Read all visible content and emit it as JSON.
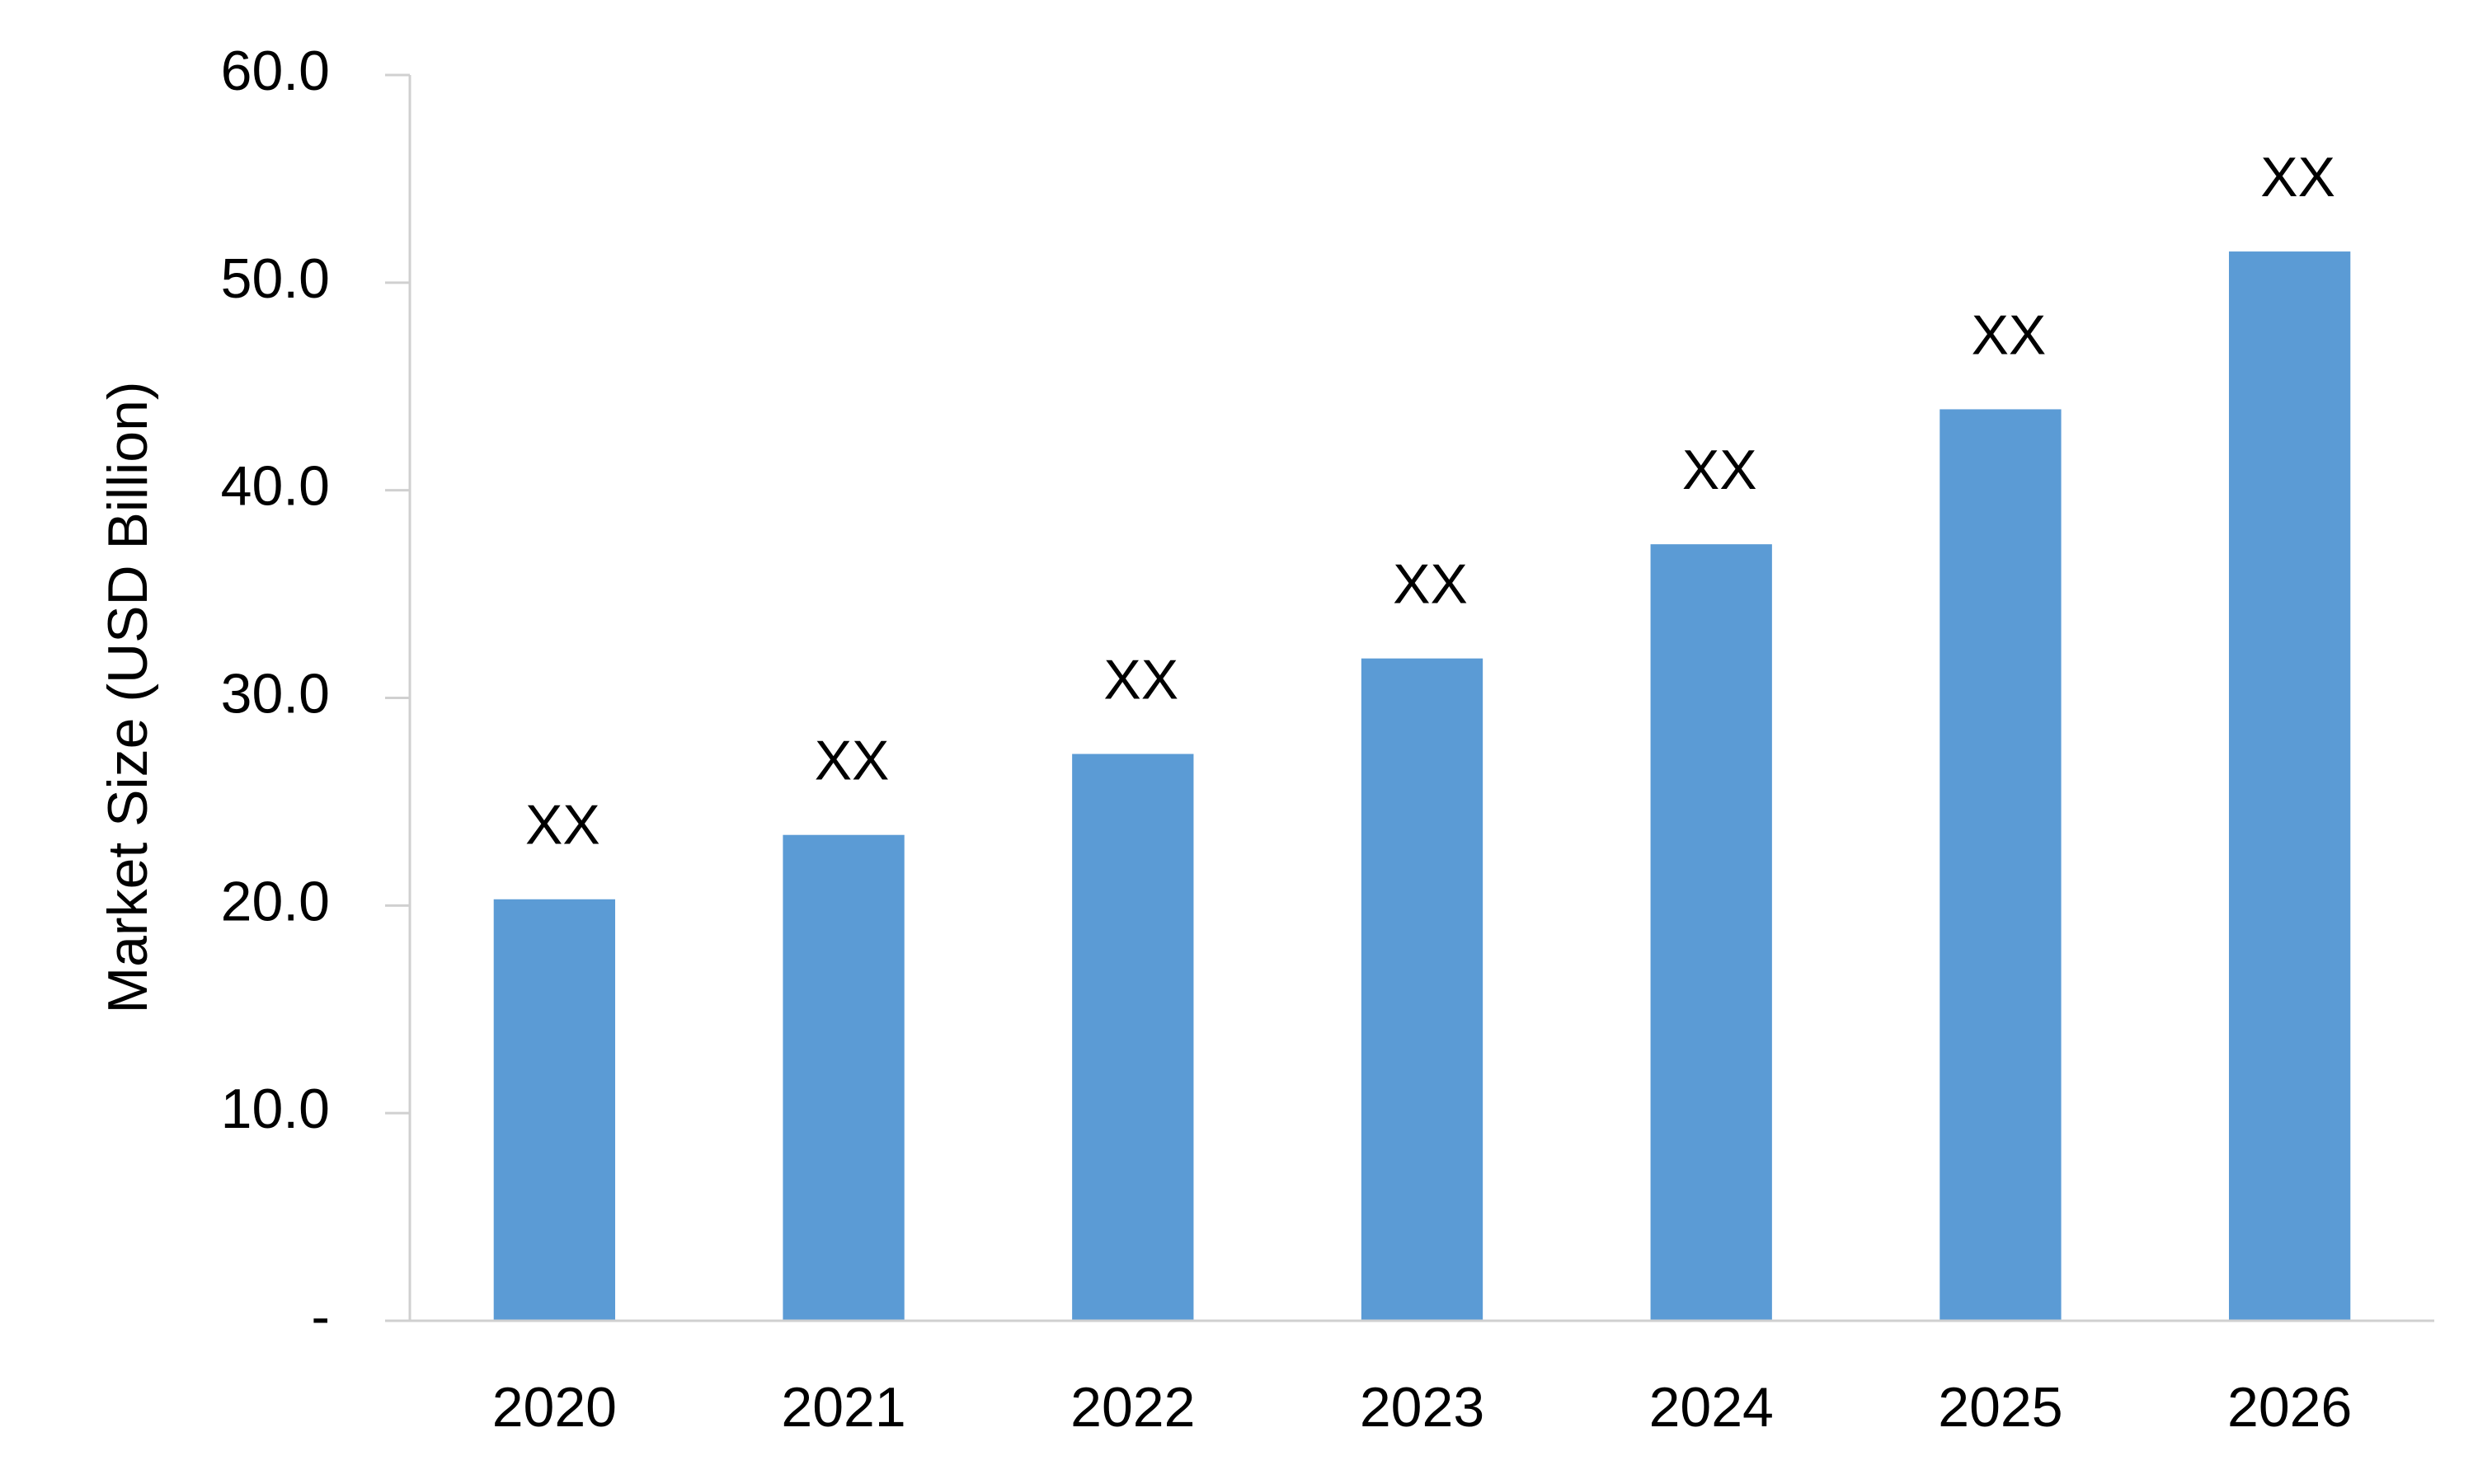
{
  "chart_data": {
    "type": "bar",
    "y_axis_label": "Market Size (USD Billion)",
    "categories": [
      "2020",
      "2021",
      "2022",
      "2023",
      "2024",
      "2025",
      "2026"
    ],
    "values": [
      20.3,
      23.4,
      27.3,
      31.9,
      37.4,
      43.9,
      51.5
    ],
    "value_labels": [
      "XX",
      "XX",
      "XX",
      "XX",
      "XX",
      "XX",
      "XX"
    ],
    "color": "#5b9bd5",
    "ylim": [
      0,
      60
    ],
    "yticks": [
      {
        "value": 0,
        "label": "-"
      },
      {
        "value": 10,
        "label": "10.0"
      },
      {
        "value": 20,
        "label": "20.0"
      },
      {
        "value": 30,
        "label": "30.0"
      },
      {
        "value": 40,
        "label": "40.0"
      },
      {
        "value": 50,
        "label": "50.0"
      },
      {
        "value": 60,
        "label": "60.0"
      }
    ],
    "grid": false
  }
}
